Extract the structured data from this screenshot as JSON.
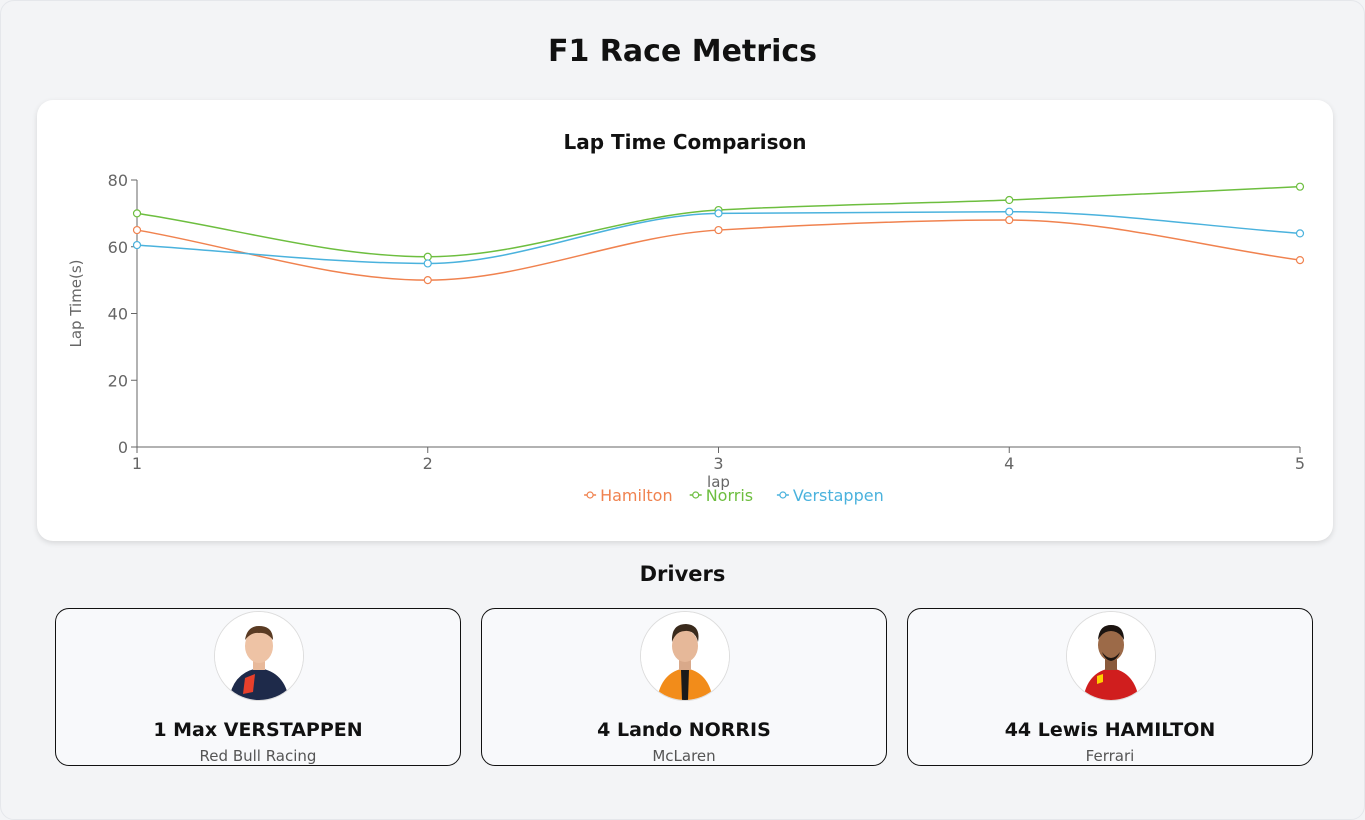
{
  "page": {
    "title": "F1 Race Metrics"
  },
  "chart": {
    "title": "Lap Time Comparison"
  },
  "chart_data": {
    "type": "line",
    "title": "Lap Time Comparison",
    "xlabel": "lap",
    "ylabel": "Lap Time(s)",
    "x": [
      1,
      2,
      3,
      4,
      5
    ],
    "ylim": [
      0,
      80
    ],
    "yticks": [
      0,
      20,
      40,
      60,
      80
    ],
    "grid": false,
    "legend": "bottom-center",
    "series": [
      {
        "name": "Hamilton",
        "color": "#f0824f",
        "values": [
          65,
          50,
          65,
          68,
          56
        ]
      },
      {
        "name": "Norris",
        "color": "#6dbe3f",
        "values": [
          70,
          57,
          71,
          74,
          78
        ]
      },
      {
        "name": "Verstappen",
        "color": "#4ab2dd",
        "values": [
          60.5,
          55,
          70,
          70.5,
          64
        ]
      }
    ]
  },
  "drivers": {
    "heading": "Drivers",
    "items": [
      {
        "name": "1 Max VERSTAPPEN",
        "team": "Red Bull Racing",
        "suit_color": "#1e2a4a",
        "accent": "#e8402b"
      },
      {
        "name": "4 Lando NORRIS",
        "team": "McLaren",
        "suit_color": "#f28c1a",
        "accent": "#1a1a1a"
      },
      {
        "name": "44 Lewis HAMILTON",
        "team": "Ferrari",
        "suit_color": "#d01e1e",
        "accent": "#ffd000"
      }
    ]
  }
}
